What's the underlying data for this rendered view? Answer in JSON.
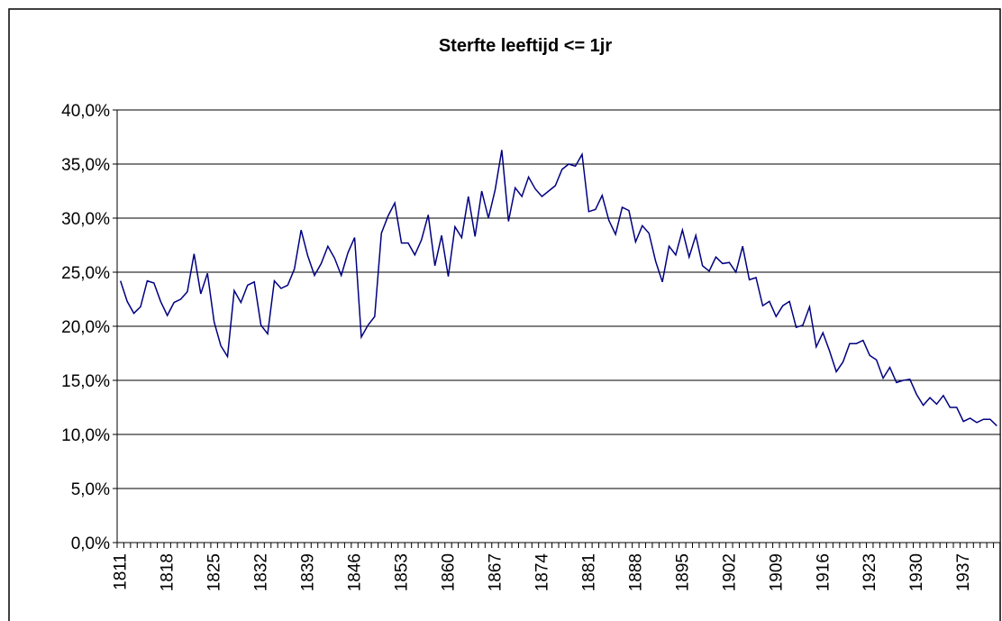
{
  "chart_data": {
    "type": "line",
    "title": "Sterfte leeftijd <= 1jr",
    "categories": [
      "1811",
      null,
      null,
      null,
      null,
      null,
      null,
      "1818",
      null,
      null,
      null,
      null,
      null,
      null,
      "1825",
      null,
      null,
      null,
      null,
      null,
      null,
      "1832",
      null,
      null,
      null,
      null,
      null,
      null,
      "1839",
      null,
      null,
      null,
      null,
      null,
      null,
      "1846",
      null,
      null,
      null,
      null,
      null,
      null,
      "1853",
      null,
      null,
      null,
      null,
      null,
      null,
      "1860",
      null,
      null,
      null,
      null,
      null,
      null,
      "1867",
      null,
      null,
      null,
      null,
      null,
      null,
      "1874",
      null,
      null,
      null,
      null,
      null,
      null,
      "1881",
      null,
      null,
      null,
      null,
      null,
      null,
      "1888",
      null,
      null,
      null,
      null,
      null,
      null,
      "1895",
      null,
      null,
      null,
      null,
      null,
      null,
      "1902",
      null,
      null,
      null,
      null,
      null,
      null,
      "1909",
      null,
      null,
      null,
      null,
      null,
      null,
      "1916",
      null,
      null,
      null,
      null,
      null,
      null,
      "1923",
      null,
      null,
      null,
      null,
      null,
      null,
      "1930",
      null,
      null,
      null,
      null,
      null,
      null,
      "1937",
      null,
      null,
      null,
      null,
      null
    ],
    "series": [
      {
        "color": "#000080",
        "values": [
          24.2,
          22.3,
          21.2,
          21.8,
          24.2,
          24.0,
          22.3,
          21.0,
          22.2,
          22.5,
          23.2,
          26.7,
          23.0,
          24.9,
          20.4,
          18.2,
          17.2,
          23.3,
          22.2,
          23.8,
          24.1,
          20.1,
          19.3,
          24.2,
          23.5,
          23.8,
          25.3,
          28.9,
          26.5,
          24.7,
          25.8,
          27.4,
          26.3,
          24.7,
          26.8,
          28.2,
          19.0,
          20.1,
          20.9,
          28.6,
          30.2,
          31.4,
          27.7,
          27.7,
          26.6,
          28.0,
          30.3,
          25.6,
          28.4,
          24.6,
          29.2,
          28.2,
          32.0,
          28.3,
          32.5,
          30.0,
          32.6,
          36.3,
          29.7,
          32.8,
          32.0,
          33.8,
          32.7,
          32.0,
          32.5,
          33.0,
          34.5,
          35.0,
          34.8,
          35.9,
          30.6,
          30.8,
          32.1,
          29.8,
          28.5,
          31.0,
          30.7,
          27.8,
          29.3,
          28.6,
          26.0,
          24.1,
          27.4,
          26.6,
          28.9,
          26.4,
          28.4,
          25.6,
          25.1,
          26.4,
          25.8,
          25.9,
          25.0,
          27.4,
          24.3,
          24.5,
          21.9,
          22.3,
          20.9,
          21.9,
          22.3,
          19.9,
          20.1,
          21.8,
          18.1,
          19.4,
          17.7,
          15.8,
          16.7,
          18.4,
          18.4,
          18.7,
          17.3,
          16.9,
          15.2,
          16.2,
          14.8,
          15.0,
          15.1,
          13.7,
          12.7,
          13.4,
          12.8,
          13.6,
          12.5,
          12.5,
          11.2,
          11.5,
          11.1,
          11.4,
          11.4,
          10.8
        ]
      }
    ],
    "ylim": [
      0,
      40
    ],
    "yticks": [
      {
        "value": 0,
        "label": "0,0%"
      },
      {
        "value": 5,
        "label": "5,0%"
      },
      {
        "value": 10,
        "label": "10,0%"
      },
      {
        "value": 15,
        "label": "15,0%"
      },
      {
        "value": 20,
        "label": "20,0%"
      },
      {
        "value": 25,
        "label": "25,0%"
      },
      {
        "value": 30,
        "label": "30,0%"
      },
      {
        "value": 35,
        "label": "35,0%"
      },
      {
        "value": 40,
        "label": "40,0%"
      }
    ],
    "grid": true
  }
}
